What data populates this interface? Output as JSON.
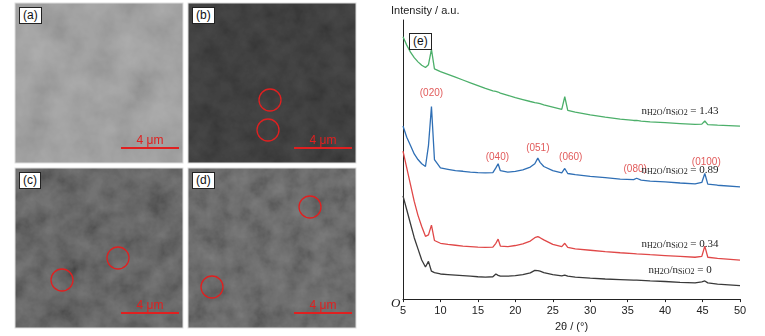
{
  "images": [
    {
      "label": "(a)",
      "scale_bar": "4 μm"
    },
    {
      "label": "(b)",
      "scale_bar": "4 μm"
    },
    {
      "label": "(c)",
      "scale_bar": "4 μm"
    },
    {
      "label": "(d)",
      "scale_bar": "4 μm"
    }
  ],
  "chart_data": {
    "type": "line",
    "label": "(e)",
    "y_label": "Intensity / a.u.",
    "x_label": "2θ / (°)",
    "origin_label": "O",
    "xlim": [
      5,
      50
    ],
    "xticks": [
      5,
      10,
      15,
      20,
      25,
      30,
      35,
      40,
      45,
      50
    ],
    "ylim": [
      0,
      100
    ],
    "yticks": [],
    "tick_labels": "x",
    "grid": false,
    "x": [
      5,
      5.5,
      6,
      6.5,
      7,
      7.5,
      8,
      8.4,
      8.8,
      9.2,
      10,
      11,
      12,
      13,
      14,
      15,
      16,
      17,
      17.4,
      17.7,
      18,
      19,
      20,
      21,
      22,
      22.6,
      23,
      23.3,
      23.8,
      25,
      26.2,
      26.6,
      27,
      28,
      30,
      32,
      34,
      35.8,
      36.2,
      36.8,
      38,
      40,
      42,
      44,
      44.9,
      45.3,
      45.7,
      47,
      50
    ],
    "series": [
      {
        "label": [
          {
            "text": "n"
          },
          {
            "text": "H2O",
            "sub": true
          },
          {
            "text": "/n"
          },
          {
            "text": "SiO2",
            "sub": true
          },
          {
            "text": " = 1.43"
          }
        ],
        "color": "#4caf6a",
        "values": [
          94,
          91,
          88.5,
          86.5,
          85,
          83.8,
          83,
          84,
          89.5,
          82.5,
          81.5,
          80.5,
          79.5,
          78.5,
          77.5,
          76.5,
          75.5,
          74.6,
          74.4,
          74.2,
          73.8,
          73,
          72.2,
          71.5,
          70.8,
          70.4,
          70.2,
          70,
          69.6,
          68.8,
          68,
          72.5,
          67.6,
          67,
          66,
          65.2,
          64.5,
          64,
          64,
          63.8,
          63.5,
          63.2,
          62.9,
          62.6,
          62.7,
          63.8,
          62.5,
          62.3,
          62
        ]
      },
      {
        "label": [
          {
            "text": "n"
          },
          {
            "text": "H2O",
            "sub": true
          },
          {
            "text": "/n"
          },
          {
            "text": "SiO2",
            "sub": true
          },
          {
            "text": " = 0.89"
          }
        ],
        "color": "#2f6fb5",
        "values": [
          62,
          58,
          55,
          52,
          50,
          48.5,
          47.5,
          55,
          69,
          50,
          47,
          46.5,
          46,
          45.8,
          45.5,
          45.3,
          45.2,
          45.3,
          47,
          48.5,
          46,
          45.5,
          45.8,
          46.3,
          47.3,
          48.5,
          50.5,
          49,
          47.5,
          46,
          45.2,
          46.8,
          45,
          44.6,
          44,
          43.5,
          43,
          42.8,
          43.3,
          42.6,
          42.3,
          42,
          41.6,
          41.3,
          41.8,
          45,
          41.2,
          40.8,
          40.2
        ]
      },
      {
        "label": [
          {
            "text": "n"
          },
          {
            "text": "H2O",
            "sub": true
          },
          {
            "text": "/n"
          },
          {
            "text": "SiO2",
            "sub": true
          },
          {
            "text": " = 0.34"
          }
        ],
        "color": "#e04848",
        "values": [
          53,
          47,
          41,
          35,
          30,
          26,
          22.5,
          23,
          26.5,
          21,
          20,
          19.6,
          19.3,
          19,
          18.8,
          18.6,
          18.5,
          18.6,
          20,
          21.5,
          19,
          18.8,
          19.2,
          19.8,
          20.8,
          22,
          22.4,
          22,
          21.2,
          19.6,
          18.8,
          20,
          18.5,
          18,
          17.5,
          17,
          16.6,
          16.3,
          16.2,
          16.1,
          15.9,
          15.6,
          15.3,
          15,
          15.3,
          19,
          15,
          14.6,
          14
        ]
      },
      {
        "label": [
          {
            "text": "n"
          },
          {
            "text": "H2O",
            "sub": true
          },
          {
            "text": "/n"
          },
          {
            "text": "SiO2",
            "sub": true
          },
          {
            "text": " = 0"
          }
        ],
        "color": "#3a3a3a",
        "values": [
          37,
          32,
          27,
          22,
          18,
          14,
          11.5,
          13.5,
          10,
          9.5,
          9,
          8.8,
          8.6,
          8.4,
          8.2,
          8,
          7.9,
          8,
          9,
          8.5,
          8.2,
          8.2,
          8.4,
          8.8,
          9.4,
          10.3,
          10.2,
          10,
          9.5,
          8.8,
          8.3,
          8.6,
          8.2,
          7.9,
          7.5,
          7.2,
          7,
          6.8,
          6.8,
          6.7,
          6.5,
          6.3,
          6,
          5.8,
          6.2,
          6.5,
          5.8,
          5.4,
          4.8
        ]
      }
    ],
    "annotations": [
      {
        "text": "(020)",
        "x": 8.8,
        "y": 72,
        "color": "#d93030"
      },
      {
        "text": "(040)",
        "x": 17.6,
        "y": 49,
        "color": "#d93030"
      },
      {
        "text": "(051)",
        "x": 23,
        "y": 52,
        "color": "#d93030"
      },
      {
        "text": "(060)",
        "x": 27.4,
        "y": 49,
        "color": "#d93030"
      },
      {
        "text": "(080)",
        "x": 36,
        "y": 44.5,
        "color": "#d93030"
      },
      {
        "text": "(0100)",
        "x": 45.5,
        "y": 47,
        "color": "#d93030"
      }
    ]
  }
}
